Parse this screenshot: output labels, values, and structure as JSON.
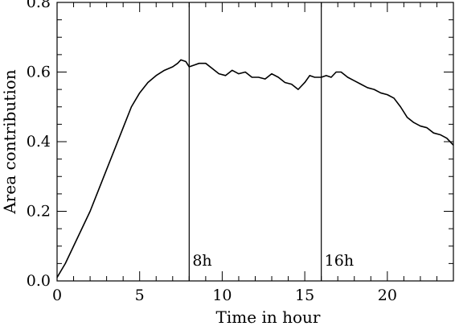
{
  "colors": {
    "background": "#ffffff",
    "axis": "#000000",
    "line": "#000000"
  },
  "chart_data": {
    "type": "line",
    "title": "",
    "xlabel": "Time in hour",
    "ylabel": "Area contribution",
    "xlim": [
      0,
      24
    ],
    "ylim": [
      0,
      0.8
    ],
    "grid": false,
    "legend": "none",
    "x_ticks": [
      0,
      5,
      10,
      15,
      20
    ],
    "x_tick_labels": [
      "0",
      "5",
      "10",
      "15",
      "20"
    ],
    "y_ticks": [
      0.0,
      0.2,
      0.4,
      0.6,
      0.8
    ],
    "y_tick_labels": [
      "0.0",
      "0.2",
      "0.4",
      "0.6",
      "0.8"
    ],
    "x_minor_step": 1,
    "y_minor_step": 0.05,
    "vlines": [
      {
        "x": 8,
        "label": "8h"
      },
      {
        "x": 16,
        "label": "16h"
      }
    ],
    "series": [
      {
        "x": [
          0,
          0.25,
          0.5,
          1,
          1.5,
          2,
          2.5,
          3,
          3.5,
          4,
          4.5,
          5,
          5.5,
          6,
          6.5,
          7,
          7.3,
          7.5,
          7.8,
          8,
          8.3,
          8.6,
          9,
          9.4,
          9.8,
          10.2,
          10.6,
          11,
          11.4,
          11.8,
          12.2,
          12.6,
          13,
          13.4,
          13.8,
          14.2,
          14.6,
          15,
          15.3,
          15.6,
          16,
          16.3,
          16.6,
          16.9,
          17.2,
          17.6,
          18,
          18.4,
          18.8,
          19.2,
          19.6,
          20,
          20.4,
          20.8,
          21.2,
          21.6,
          22,
          22.4,
          22.8,
          23.2,
          23.6,
          24
        ],
        "y": [
          0.01,
          0.03,
          0.05,
          0.1,
          0.15,
          0.2,
          0.26,
          0.32,
          0.38,
          0.44,
          0.5,
          0.54,
          0.57,
          0.59,
          0.605,
          0.615,
          0.625,
          0.635,
          0.63,
          0.615,
          0.62,
          0.625,
          0.625,
          0.61,
          0.595,
          0.59,
          0.605,
          0.595,
          0.6,
          0.585,
          0.585,
          0.58,
          0.595,
          0.585,
          0.57,
          0.565,
          0.55,
          0.57,
          0.59,
          0.585,
          0.585,
          0.59,
          0.585,
          0.6,
          0.6,
          0.585,
          0.575,
          0.565,
          0.555,
          0.55,
          0.54,
          0.535,
          0.525,
          0.5,
          0.47,
          0.455,
          0.445,
          0.44,
          0.425,
          0.42,
          0.41,
          0.39
        ]
      }
    ]
  }
}
